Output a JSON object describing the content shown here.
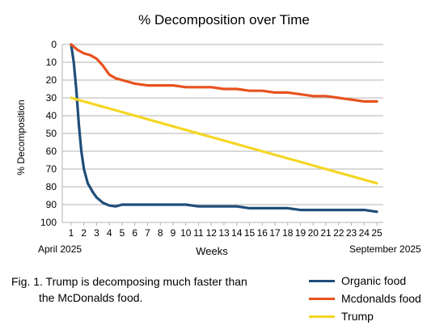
{
  "chart_data": {
    "type": "line",
    "title": "% Decomposition over Time",
    "xlabel": "Weeks",
    "ylabel": "% Decomposition",
    "x": [
      1,
      2,
      3,
      4,
      5,
      6,
      7,
      8,
      9,
      10,
      11,
      12,
      13,
      14,
      15,
      16,
      17,
      18,
      19,
      20,
      21,
      22,
      23,
      24,
      25
    ],
    "xlim": [
      1,
      25
    ],
    "ylim": [
      0,
      100
    ],
    "y_inverted": true,
    "yticks": [
      0,
      10,
      20,
      30,
      40,
      50,
      60,
      70,
      80,
      90,
      100
    ],
    "grid": "horizontal",
    "legend_position": "bottom-right",
    "series": [
      {
        "name": "Organic food",
        "color": "#1f4e79",
        "points": [
          [
            1,
            0
          ],
          [
            1.2,
            10
          ],
          [
            1.4,
            25
          ],
          [
            1.6,
            45
          ],
          [
            1.8,
            60
          ],
          [
            2,
            70
          ],
          [
            2.3,
            78
          ],
          [
            2.7,
            83
          ],
          [
            3,
            86
          ],
          [
            3.5,
            89
          ],
          [
            4,
            90.5
          ],
          [
            4.5,
            91
          ],
          [
            5,
            90
          ],
          [
            6,
            90
          ],
          [
            7,
            90
          ],
          [
            8,
            90
          ],
          [
            9,
            90
          ],
          [
            10,
            90
          ],
          [
            11,
            91
          ],
          [
            12,
            91
          ],
          [
            13,
            91
          ],
          [
            14,
            91
          ],
          [
            15,
            92
          ],
          [
            16,
            92
          ],
          [
            17,
            92
          ],
          [
            18,
            92
          ],
          [
            19,
            93
          ],
          [
            20,
            93
          ],
          [
            21,
            93
          ],
          [
            22,
            93
          ],
          [
            23,
            93
          ],
          [
            24,
            93
          ],
          [
            25,
            94
          ]
        ]
      },
      {
        "name": "Mcdonalds food",
        "color": "#e8521e",
        "points": [
          [
            1,
            0
          ],
          [
            1.5,
            3
          ],
          [
            2,
            5
          ],
          [
            2.5,
            6
          ],
          [
            3,
            8
          ],
          [
            3.5,
            12
          ],
          [
            4,
            17
          ],
          [
            4.5,
            19
          ],
          [
            5,
            20
          ],
          [
            6,
            22
          ],
          [
            7,
            23
          ],
          [
            8,
            23
          ],
          [
            9,
            23
          ],
          [
            10,
            24
          ],
          [
            11,
            24
          ],
          [
            12,
            24
          ],
          [
            13,
            25
          ],
          [
            14,
            25
          ],
          [
            15,
            26
          ],
          [
            16,
            26
          ],
          [
            17,
            27
          ],
          [
            18,
            27
          ],
          [
            19,
            28
          ],
          [
            20,
            29
          ],
          [
            21,
            29
          ],
          [
            22,
            30
          ],
          [
            23,
            31
          ],
          [
            24,
            32
          ],
          [
            25,
            32
          ]
        ]
      },
      {
        "name": "Trump",
        "color": "#f5d623",
        "points": [
          [
            1,
            30
          ],
          [
            25,
            78
          ]
        ]
      }
    ],
    "annotations": {
      "start_date": "April 2025",
      "end_date": "September 2025"
    }
  },
  "caption": {
    "line1": "Fig. 1.  Trump is decomposing much faster than",
    "line2": "the McDonalds food."
  }
}
